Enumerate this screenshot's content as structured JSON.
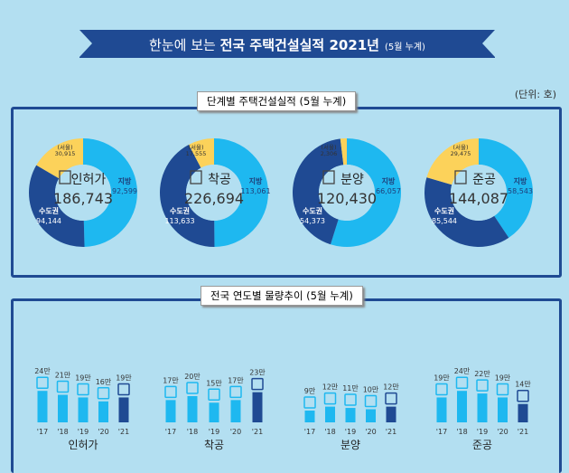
{
  "banner": {
    "prefix": "한눈에 보는",
    "bold": "전국 주택건설실적 2021년",
    "suffix": "(5월 누계)"
  },
  "section1": {
    "title": "단계별 주택건설실적 (5월 누계)",
    "unit": "(단위: 호)"
  },
  "section2": {
    "title": "전국 연도별 물량추이 (5월 누계)"
  },
  "colors": {
    "local": "#1eb8f0",
    "capital": "#1f4a93",
    "seoul": "#fcd25a",
    "bar": "#1eb8f0",
    "bar_current": "#1f4a93"
  },
  "chart_data": [
    {
      "type": "pie",
      "name": "인허가",
      "icon": "document-pen-icon",
      "total": "186,743",
      "segments": [
        {
          "label": "지방",
          "value": 92599,
          "text": "92,599"
        },
        {
          "label": "수도권",
          "value": 94144,
          "text": "94,144"
        },
        {
          "label": "(서울)",
          "value": 30915,
          "text": "30,915"
        }
      ]
    },
    {
      "type": "pie",
      "name": "착공",
      "icon": "crane-icon",
      "total": "226,694",
      "segments": [
        {
          "label": "지방",
          "value": 113061,
          "text": "113,061"
        },
        {
          "label": "수도권",
          "value": 113633,
          "text": "113,633"
        },
        {
          "label": "(서울)",
          "value": 17555,
          "text": "17,555"
        }
      ]
    },
    {
      "type": "pie",
      "name": "분양",
      "icon": "presenter-icon",
      "total": "120,430",
      "segments": [
        {
          "label": "지방",
          "value": 66057,
          "text": "66,057"
        },
        {
          "label": "수도권",
          "value": 54373,
          "text": "54,373"
        },
        {
          "label": "(서울)",
          "value": 2306,
          "text": "2,306"
        }
      ]
    },
    {
      "type": "pie",
      "name": "준공",
      "icon": "building-icon",
      "total": "144,087",
      "segments": [
        {
          "label": "지방",
          "value": 58543,
          "text": "58,543"
        },
        {
          "label": "수도권",
          "value": 85544,
          "text": "85,544"
        },
        {
          "label": "(서울)",
          "value": 29475,
          "text": "29,475"
        }
      ]
    },
    {
      "type": "bar",
      "xlabel": "인허가",
      "categories": [
        "'17",
        "'18",
        "'19",
        "'20",
        "'21"
      ],
      "values": [
        24,
        21,
        19,
        16,
        19
      ],
      "labels": [
        "24만",
        "21만",
        "19만",
        "16만",
        "19만"
      ]
    },
    {
      "type": "bar",
      "xlabel": "착공",
      "categories": [
        "'17",
        "'18",
        "'19",
        "'20",
        "'21"
      ],
      "values": [
        17,
        20,
        15,
        17,
        23
      ],
      "labels": [
        "17만",
        "20만",
        "15만",
        "17만",
        "23만"
      ]
    },
    {
      "type": "bar",
      "xlabel": "분양",
      "categories": [
        "'17",
        "'18",
        "'19",
        "'20",
        "'21"
      ],
      "values": [
        9,
        12,
        11,
        10,
        12
      ],
      "labels": [
        "9만",
        "12만",
        "11만",
        "10만",
        "12만"
      ]
    },
    {
      "type": "bar",
      "xlabel": "준공",
      "categories": [
        "'17",
        "'18",
        "'19",
        "'20",
        "'21"
      ],
      "values": [
        19,
        24,
        22,
        19,
        14
      ],
      "labels": [
        "19만",
        "24만",
        "22만",
        "19만",
        "14만"
      ]
    }
  ]
}
